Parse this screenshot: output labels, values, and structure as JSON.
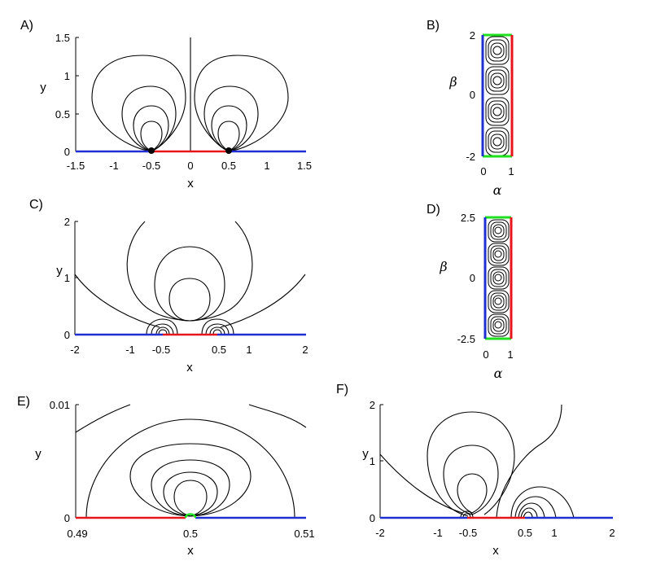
{
  "figure": {
    "colors": {
      "red": "#e8141b",
      "blue": "#1f2fd0",
      "green": "#1ee01e",
      "contour": "#000000"
    },
    "panels": [
      {
        "label": "A)",
        "xlabel": "x",
        "ylabel": "y",
        "xticks": [
          "-1.5",
          "-1",
          "-0.5",
          "0",
          "0.5",
          "1",
          "1.5"
        ],
        "yticks": [
          "0",
          "0.5",
          "1",
          "1.5"
        ]
      },
      {
        "label": "B)",
        "xlabel": "α",
        "ylabel": "β",
        "xticks": [
          "0",
          "1"
        ],
        "yticks": [
          "-2",
          "0",
          "2"
        ]
      },
      {
        "label": "C)",
        "xlabel": "x",
        "ylabel": "y",
        "xticks": [
          "-2",
          "-1",
          "-0.5",
          "0.5",
          "1",
          "2"
        ],
        "yticks": [
          "0",
          "1",
          "2"
        ]
      },
      {
        "label": "D)",
        "xlabel": "α",
        "ylabel": "β",
        "xticks": [
          "0",
          "1"
        ],
        "yticks": [
          "-2.5",
          "0",
          "2.5"
        ]
      },
      {
        "label": "E)",
        "xlabel": "x",
        "ylabel": "y",
        "xticks": [
          "0.49",
          "0.5",
          "0.51"
        ],
        "yticks": [
          "0",
          "0.01"
        ]
      },
      {
        "label": "F)",
        "xlabel": "x",
        "ylabel": "y",
        "xticks": [
          "-2",
          "-1",
          "-0.5",
          "0.5",
          "1",
          "2"
        ],
        "yticks": [
          "0",
          "1",
          "2"
        ]
      }
    ]
  },
  "chart_data": [
    {
      "panel": "A",
      "type": "line",
      "description_of_marks": "streamline contours around two point singularities on the x-axis",
      "xlim": [
        -1.5,
        1.5
      ],
      "ylim": [
        0,
        1.5
      ],
      "singularities_x": [
        -0.5,
        0.5
      ],
      "boundary_segments": [
        {
          "color": "blue",
          "x": [
            -1.5,
            -0.5
          ]
        },
        {
          "color": "red",
          "x": [
            -0.5,
            0.5
          ]
        },
        {
          "color": "blue",
          "x": [
            0.5,
            1.5
          ]
        }
      ],
      "vertical_line_x": 0,
      "contour_loops_left": [
        {
          "center": [
            -0.5,
            0.27
          ],
          "rx": 0.16,
          "ry": 0.18
        },
        {
          "center": [
            -0.5,
            0.35
          ],
          "rx": 0.26,
          "ry": 0.33
        },
        {
          "center": [
            -0.5,
            0.43
          ],
          "rx": 0.33,
          "ry": 0.44
        },
        {
          "center": [
            -0.63,
            0.6
          ],
          "rx": 0.62,
          "ry": 0.78
        }
      ],
      "contour_loops_right": [
        {
          "center": [
            0.5,
            0.27
          ],
          "rx": 0.16,
          "ry": 0.18
        },
        {
          "center": [
            0.5,
            0.35
          ],
          "rx": 0.26,
          "ry": 0.33
        },
        {
          "center": [
            0.5,
            0.43
          ],
          "rx": 0.33,
          "ry": 0.44
        },
        {
          "center": [
            0.63,
            0.6
          ],
          "rx": 0.62,
          "ry": 0.78
        }
      ]
    },
    {
      "panel": "B",
      "type": "line",
      "description_of_marks": "rectangular domain with four stacked cells of nested closed contours",
      "xlim": [
        0,
        1
      ],
      "ylim": [
        -2,
        2
      ],
      "edges": {
        "left": "blue",
        "right": "red",
        "top": "green",
        "bottom": "green"
      },
      "cell_centers_beta": [
        -1.5,
        -0.5,
        0.5,
        1.5
      ]
    },
    {
      "panel": "C",
      "type": "line",
      "description_of_marks": "streamline contours with central nested loops and small loops near x=±0.5",
      "xlim": [
        -2,
        2
      ],
      "ylim": [
        0,
        2
      ],
      "singularities_x": [
        -0.3,
        0.3
      ],
      "boundary_segments": [
        {
          "color": "blue",
          "x": [
            -2,
            -0.35
          ]
        },
        {
          "color": "red",
          "x": [
            -0.35,
            0.35
          ]
        },
        {
          "color": "blue",
          "x": [
            0.35,
            2
          ]
        }
      ],
      "central_loops": [
        {
          "center": [
            0,
            0.55
          ],
          "rx": 0.3,
          "ry": 0.3
        },
        {
          "center": [
            0,
            0.8
          ],
          "rx": 0.55,
          "ry": 0.6
        }
      ],
      "open_curve_top_ends_x": [
        -0.8,
        0.8
      ],
      "outer_curve_ends": [
        [
          -2,
          0.8
        ],
        [
          2,
          0.8
        ]
      ]
    },
    {
      "panel": "D",
      "type": "line",
      "description_of_marks": "rectangular domain with five stacked cells of nested closed contours",
      "xlim": [
        0,
        1
      ],
      "ylim": [
        -2.5,
        2.5
      ],
      "edges": {
        "left": "blue",
        "right": "red",
        "top": "green",
        "bottom": "green"
      },
      "cell_centers_beta": [
        -2,
        -1,
        0,
        1,
        2
      ]
    },
    {
      "panel": "E",
      "type": "line",
      "description_of_marks": "zoomed view near x=0.5 with nested semi-closed loops",
      "xlim": [
        0.49,
        0.51
      ],
      "ylim": [
        0,
        0.011
      ],
      "boundary_segments": [
        {
          "color": "red",
          "x": [
            0.49,
            0.4994
          ]
        },
        {
          "color": "green",
          "x": [
            0.4994,
            0.5006
          ]
        },
        {
          "color": "blue",
          "x": [
            0.5006,
            0.51
          ]
        }
      ],
      "nested_loops": [
        {
          "center": [
            0.5,
            0.0017
          ],
          "rx": 0.0011,
          "ry": 0.0013
        },
        {
          "center": [
            0.5,
            0.0022
          ],
          "rx": 0.0018,
          "ry": 0.002
        },
        {
          "center": [
            0.5,
            0.0027
          ],
          "rx": 0.0027,
          "ry": 0.0028
        },
        {
          "center": [
            0.5,
            0.0031
          ],
          "rx": 0.0035,
          "ry": 0.0035
        }
      ],
      "outer_arch": {
        "x_ends": [
          0.4934,
          0.5066
        ],
        "top_y": 0.0087
      }
    },
    {
      "panel": "F",
      "type": "line",
      "description_of_marks": "asymmetric streamline contours: large loops on the left, small loops on the right",
      "xlim": [
        -2,
        2
      ],
      "ylim": [
        0,
        2
      ],
      "singularities_x": [
        -0.5,
        0.5
      ],
      "boundary_segments": [
        {
          "color": "blue",
          "x": [
            -2,
            -0.5
          ]
        },
        {
          "color": "red",
          "x": [
            -0.5,
            0.5
          ]
        },
        {
          "color": "blue",
          "x": [
            0.5,
            2
          ]
        }
      ],
      "left_loops": [
        {
          "center": [
            -0.25,
            0.35
          ],
          "rx": 0.22,
          "ry": 0.25
        },
        {
          "center": [
            -0.25,
            0.55
          ],
          "rx": 0.35,
          "ry": 0.5
        },
        {
          "center": [
            -0.35,
            0.85
          ],
          "rx": 0.65,
          "ry": 0.83
        }
      ]
    }
  ]
}
